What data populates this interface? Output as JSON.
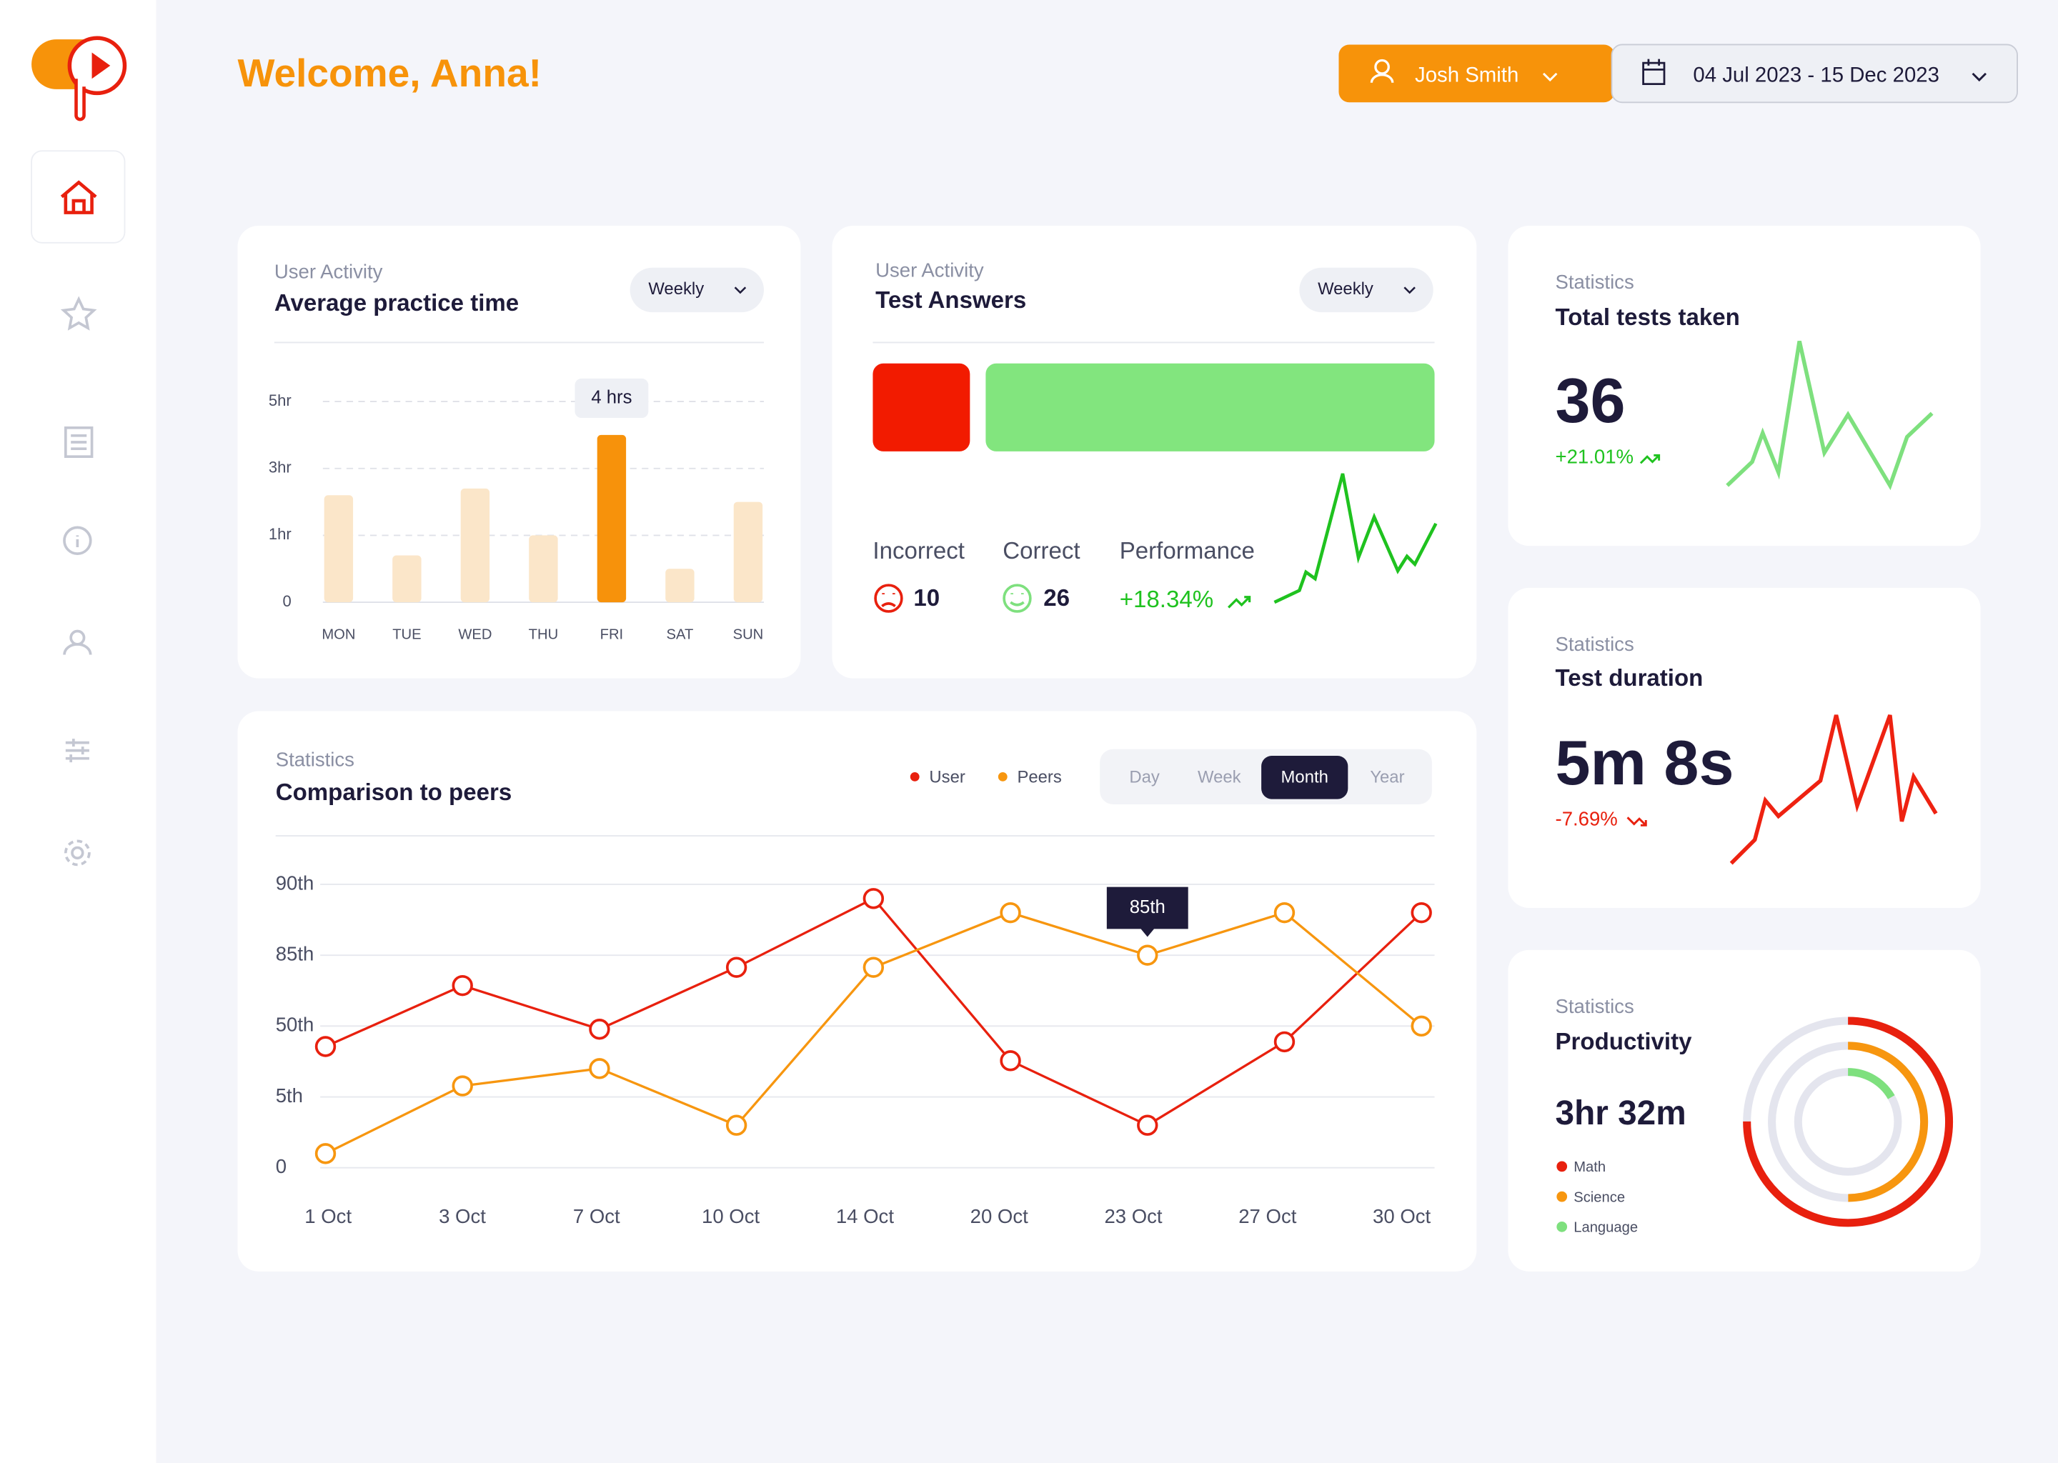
{
  "header": {
    "greeting": "Welcome, Anna!",
    "user": "Josh Smith",
    "date_range": "04 Jul 2023 - 15 Dec 2023"
  },
  "practice": {
    "eyebrow": "User Activity",
    "title": "Average practice time",
    "period": "Weekly",
    "chart_data": {
      "type": "bar",
      "categories": [
        "MON",
        "TUE",
        "WED",
        "THU",
        "FRI",
        "SAT",
        "SUN"
      ],
      "values": [
        2.2,
        0.7,
        2.4,
        1,
        4,
        0.5,
        2
      ],
      "value_labels": [
        null,
        null,
        null,
        null,
        "4 hrs",
        null,
        null
      ],
      "color": "#fbe6c9",
      "highlight_color": "#f7920b",
      "ylim": [
        0,
        5
      ],
      "yticks": [
        0,
        {
          "value": 1,
          "label": "1hr"
        },
        {
          "value": 3,
          "label": "3hr"
        },
        {
          "value": 5,
          "label": "5hr"
        }
      ],
      "grid": true
    }
  },
  "answers": {
    "eyebrow": "User Activity",
    "title": "Test Answers",
    "period": "Weekly",
    "incorrect_label": "Incorrect",
    "incorrect": 10,
    "correct_label": "Correct",
    "correct": 26,
    "performance_label": "Performance",
    "performance": "+18.34%"
  },
  "comparison": {
    "eyebrow": "Statistics",
    "title": "Comparison to peers",
    "tabs": [
      "Day",
      "Week",
      "Month",
      "Year"
    ],
    "active_tab": "Month",
    "chart_data": {
      "type": "line",
      "categories": [
        "1 Oct",
        "3 Oct",
        "7 Oct",
        "10 Oct",
        "14 Oct",
        "20 Oct",
        "23 Oct",
        "27 Oct",
        "30 Oct"
      ],
      "series": [
        {
          "name": "User",
          "color": "#e8200e",
          "values": [
            37,
            70,
            48,
            79,
            89,
            28,
            3,
            40,
            88
          ]
        },
        {
          "name": "Peers",
          "color": "#f7960f",
          "values": [
            1,
            12,
            23,
            3,
            79,
            88,
            85,
            88,
            50
          ],
          "value_labels": [
            null,
            null,
            null,
            null,
            null,
            null,
            "85th",
            null,
            null
          ]
        }
      ],
      "ylim": [
        0,
        90
      ],
      "yticks": [
        0,
        {
          "value": 5,
          "label": "5th"
        },
        {
          "value": 50,
          "label": "50th"
        },
        {
          "value": 85,
          "label": "85th"
        },
        {
          "value": 90,
          "label": "90th"
        }
      ],
      "grid": true
    }
  },
  "total_tests": {
    "eyebrow": "Statistics",
    "title": "Total tests taken",
    "value": 36,
    "change": "+21.01%"
  },
  "duration": {
    "eyebrow": "Statistics",
    "title": "Test duration",
    "value": "5m 8s",
    "change": "-7.69%"
  },
  "productivity": {
    "eyebrow": "Statistics",
    "title": "Productivity",
    "value": "3hr 32m",
    "legend": [
      {
        "name": "Math",
        "color": "#e8200e"
      },
      {
        "name": "Science",
        "color": "#f7960f"
      },
      {
        "name": "Language",
        "color": "#7ee07e"
      }
    ]
  }
}
